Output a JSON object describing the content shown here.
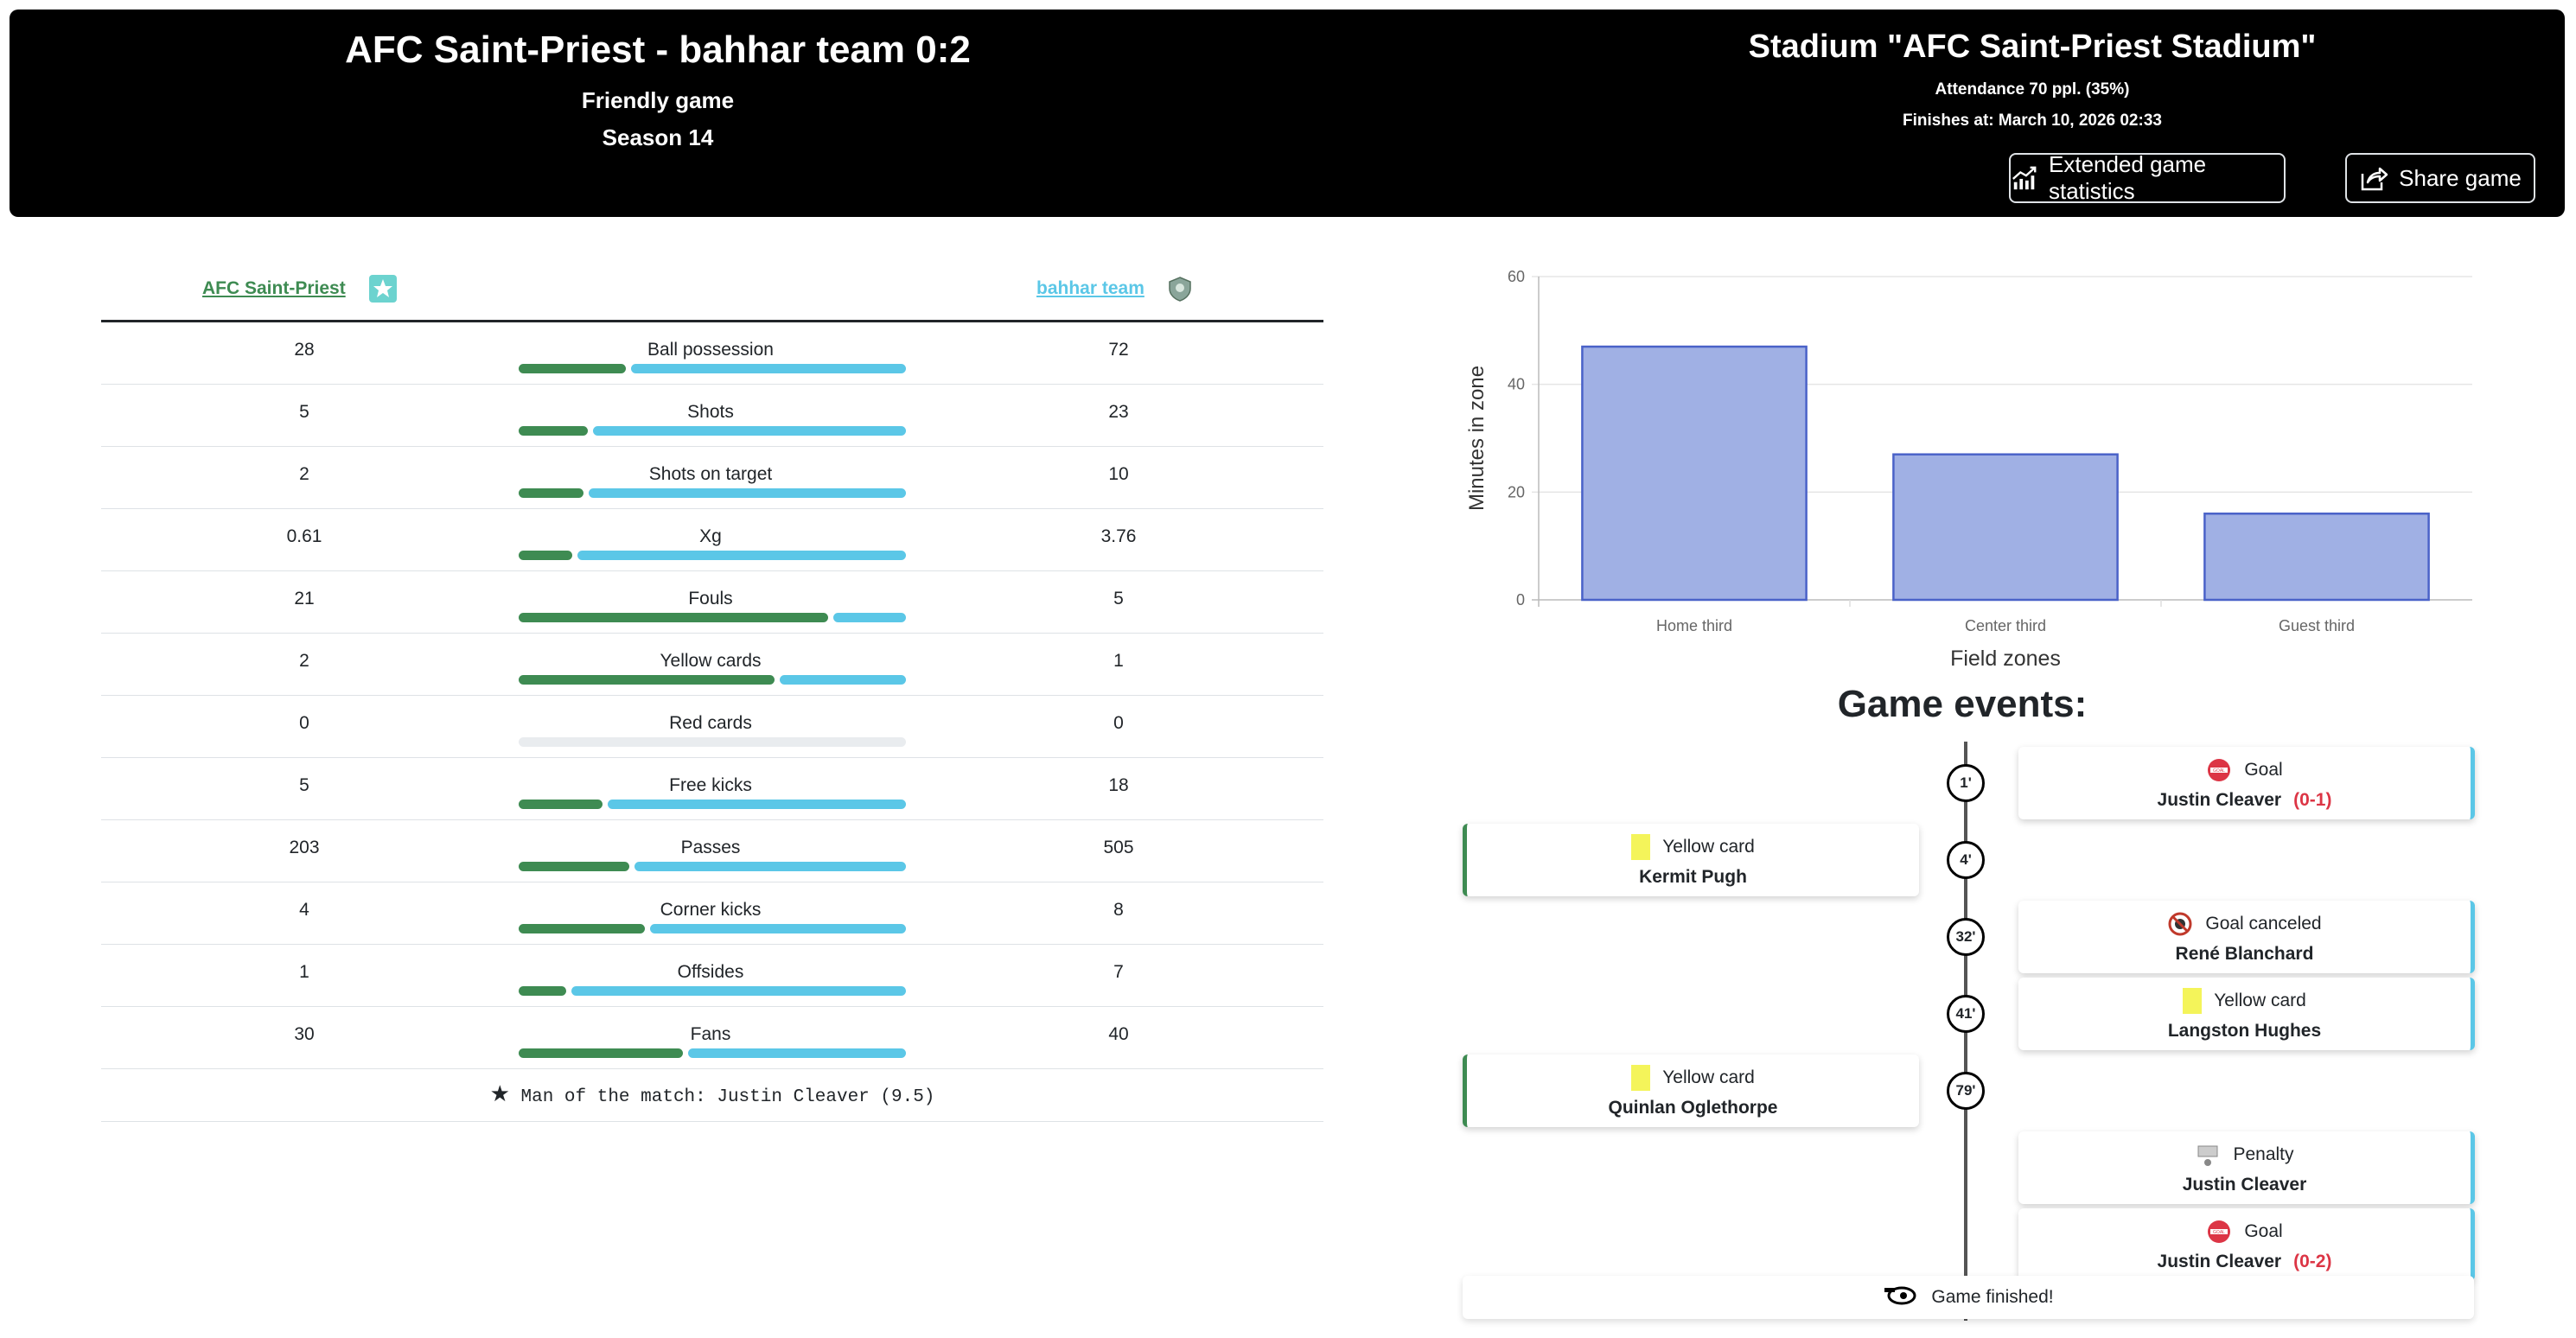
{
  "header": {
    "match_title": "AFC Saint-Priest - bahhar team 0:2",
    "game_type": "Friendly game",
    "season": "Season 14",
    "stadium": "Stadium \"AFC Saint-Priest Stadium\"",
    "attendance": "Attendance 70 ppl. (35%)",
    "finishes": "Finishes at: March 10, 2026 02:33",
    "extended_stats_label": "Extended game statistics",
    "share_label": "Share game"
  },
  "colors": {
    "home": "#3e8b52",
    "away": "#5bc7e7",
    "empty": "#e9ecef"
  },
  "teams": {
    "home": "AFC Saint-Priest",
    "away": "bahhar team"
  },
  "stats": [
    {
      "label": "Ball possession",
      "home": "28",
      "away": "72",
      "home_share": 0.28
    },
    {
      "label": "Shots",
      "home": "5",
      "away": "23",
      "home_share": 0.18
    },
    {
      "label": "Shots on target",
      "home": "2",
      "away": "10",
      "home_share": 0.17
    },
    {
      "label": "Xg",
      "home": "0.61",
      "away": "3.76",
      "home_share": 0.14
    },
    {
      "label": "Fouls",
      "home": "21",
      "away": "5",
      "home_share": 0.81
    },
    {
      "label": "Yellow cards",
      "home": "2",
      "away": "1",
      "home_share": 0.67
    },
    {
      "label": "Red cards",
      "home": "0",
      "away": "0",
      "home_share": null
    },
    {
      "label": "Free kicks",
      "home": "5",
      "away": "18",
      "home_share": 0.22
    },
    {
      "label": "Passes",
      "home": "203",
      "away": "505",
      "home_share": 0.29
    },
    {
      "label": "Corner kicks",
      "home": "4",
      "away": "8",
      "home_share": 0.33
    },
    {
      "label": "Offsides",
      "home": "1",
      "away": "7",
      "home_share": 0.125
    },
    {
      "label": "Fans",
      "home": "30",
      "away": "40",
      "home_share": 0.43
    }
  ],
  "man_of_match": "Man of the match: Justin Cleaver (9.5)",
  "chart_data": {
    "type": "bar",
    "categories": [
      "Home third",
      "Center third",
      "Guest third"
    ],
    "values": [
      47,
      27,
      16
    ],
    "xlabel": "Field zones",
    "ylabel": "Minutes in zone",
    "ylim": [
      0,
      60
    ],
    "yticks": [
      "0",
      "20",
      "40",
      "60"
    ],
    "bar_color": "#a0b0e4",
    "bar_border": "#4a62c8",
    "grid": true
  },
  "events_title": "Game events:",
  "events": [
    {
      "minute": "1'",
      "side": "away",
      "type": "goal",
      "title": "Goal",
      "player": "Justin Cleaver",
      "score": "(0-1)"
    },
    {
      "minute": "4'",
      "side": "home",
      "type": "yellow",
      "title": "Yellow card",
      "player": "Kermit Pugh",
      "score": ""
    },
    {
      "minute": "32'",
      "side": "away",
      "type": "canceled",
      "title": "Goal canceled",
      "player": "René Blanchard",
      "score": ""
    },
    {
      "minute": "41'",
      "side": "away",
      "type": "yellow",
      "title": "Yellow card",
      "player": "Langston Hughes",
      "score": ""
    },
    {
      "minute": "79'",
      "side": "home",
      "type": "yellow",
      "title": "Yellow card",
      "player": "Quinlan Oglethorpe",
      "score": ""
    },
    {
      "minute": "",
      "side": "away",
      "type": "penalty",
      "title": "Penalty",
      "player": "Justin Cleaver",
      "score": ""
    },
    {
      "minute": "",
      "side": "away",
      "type": "goal",
      "title": "Goal",
      "player": "Justin Cleaver",
      "score": "(0-2)"
    }
  ],
  "game_finished": "Game finished!"
}
